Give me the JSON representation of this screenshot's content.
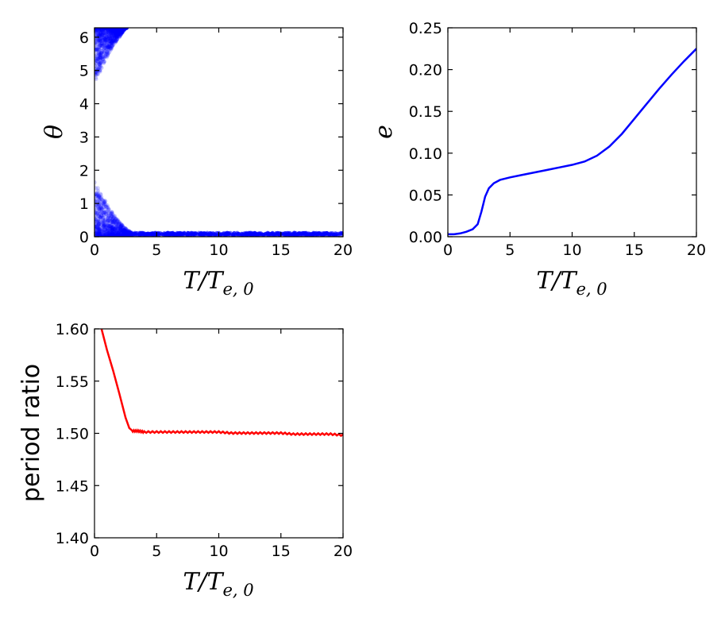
{
  "chart_data": [
    {
      "id": "theta",
      "type": "scatter",
      "xlabel": "T/T_{e,0}",
      "ylabel": "θ",
      "xlim": [
        0,
        20
      ],
      "ylim": [
        0,
        6.283
      ],
      "xticks": [
        "0",
        "5",
        "10",
        "15",
        "20"
      ],
      "yticks": [
        "0",
        "1",
        "2",
        "3",
        "4",
        "5",
        "6"
      ],
      "grid": false,
      "series": [
        {
          "color": "#0000ff",
          "description_points": {
            "near_zero_band": [
              [
                3,
                0.08
              ],
              [
                5,
                0.08
              ],
              [
                10,
                0.08
              ],
              [
                15,
                0.08
              ],
              [
                20,
                0.08
              ]
            ],
            "lower_lobe_edge": [
              [
                0,
                1.7
              ],
              [
                0.5,
                1.3
              ],
              [
                1,
                1.0
              ],
              [
                1.5,
                0.7
              ],
              [
                2,
                0.45
              ],
              [
                2.5,
                0.25
              ],
              [
                3,
                0.12
              ]
            ],
            "upper_lobe_edge": [
              [
                0,
                4.6
              ],
              [
                0.5,
                5.0
              ],
              [
                1,
                5.4
              ],
              [
                1.5,
                5.75
              ],
              [
                2,
                6.0
              ],
              [
                2.5,
                6.283
              ]
            ]
          }
        }
      ]
    },
    {
      "id": "eccentricity",
      "type": "line",
      "xlabel": "T/T_{e,0}",
      "ylabel": "e",
      "xlim": [
        0,
        20
      ],
      "ylim": [
        0,
        0.25
      ],
      "xticks": [
        "0",
        "5",
        "10",
        "15",
        "20"
      ],
      "yticks": [
        "0.00",
        "0.05",
        "0.10",
        "0.15",
        "0.20",
        "0.25"
      ],
      "grid": false,
      "series": [
        {
          "color": "#0000ff",
          "x": [
            0,
            0.5,
            1,
            1.5,
            2,
            2.4,
            2.7,
            3.0,
            3.3,
            3.7,
            4.2,
            5,
            6,
            7,
            8,
            9,
            10,
            11,
            12,
            13,
            14,
            15,
            16,
            17,
            18,
            19,
            20
          ],
          "y": [
            0.003,
            0.003,
            0.004,
            0.006,
            0.009,
            0.015,
            0.03,
            0.048,
            0.058,
            0.064,
            0.068,
            0.071,
            0.074,
            0.077,
            0.08,
            0.083,
            0.086,
            0.09,
            0.097,
            0.108,
            0.123,
            0.141,
            0.159,
            0.177,
            0.194,
            0.21,
            0.225
          ]
        }
      ]
    },
    {
      "id": "period_ratio",
      "type": "line",
      "xlabel": "T/T_{e,0}",
      "ylabel": "period ratio",
      "xlim": [
        0,
        20
      ],
      "ylim": [
        1.4,
        1.6
      ],
      "xticks": [
        "0",
        "5",
        "10",
        "15",
        "20"
      ],
      "yticks": [
        "1.40",
        "1.45",
        "1.50",
        "1.55",
        "1.60"
      ],
      "grid": false,
      "series": [
        {
          "color": "#ff0000",
          "x": [
            0.5,
            1.0,
            1.5,
            2.0,
            2.5,
            2.8,
            3.0,
            3.5,
            4,
            5,
            6,
            7,
            8,
            9,
            10,
            11,
            12,
            13,
            14,
            15,
            16,
            17,
            18,
            19,
            20
          ],
          "y": [
            1.603,
            1.58,
            1.56,
            1.538,
            1.515,
            1.505,
            1.503,
            1.503,
            1.502,
            1.502,
            1.502,
            1.502,
            1.502,
            1.502,
            1.502,
            1.501,
            1.501,
            1.501,
            1.501,
            1.501,
            1.5,
            1.5,
            1.5,
            1.5,
            1.499
          ]
        }
      ]
    }
  ]
}
